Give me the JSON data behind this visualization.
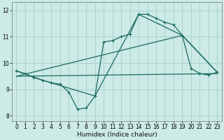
{
  "xlabel": "Humidex (Indice chaleur)",
  "bg_color": "#cceae6",
  "grid_color": "#aad4d0",
  "line_color": "#1a6b60",
  "xlim": [
    -0.5,
    23.5
  ],
  "ylim": [
    7.8,
    12.3
  ],
  "xticks": [
    0,
    1,
    2,
    3,
    4,
    5,
    6,
    7,
    8,
    9,
    10,
    11,
    12,
    13,
    14,
    15,
    16,
    17,
    18,
    19,
    20,
    21,
    22,
    23
  ],
  "yticks": [
    8,
    9,
    10,
    11,
    12
  ],
  "line1_x": [
    0,
    1,
    2,
    3,
    4,
    5,
    6,
    7,
    8,
    9,
    10,
    11,
    12,
    13,
    14,
    15,
    16,
    17,
    18,
    19,
    20,
    21,
    22,
    23
  ],
  "line1_y": [
    9.7,
    9.6,
    9.45,
    9.35,
    9.25,
    9.2,
    8.9,
    8.25,
    8.3,
    8.75,
    10.8,
    10.85,
    11.0,
    11.1,
    11.85,
    11.85,
    11.7,
    11.55,
    11.45,
    11.05,
    9.8,
    9.6,
    9.55,
    9.65
  ],
  "line2_x": [
    0,
    3,
    9,
    14,
    19,
    23
  ],
  "line2_y": [
    9.7,
    9.35,
    8.75,
    11.85,
    11.05,
    9.65
  ],
  "line3_x": [
    0,
    19,
    23
  ],
  "line3_y": [
    9.5,
    11.05,
    9.65
  ],
  "line4_x": [
    0,
    23
  ],
  "line4_y": [
    9.5,
    9.6
  ]
}
